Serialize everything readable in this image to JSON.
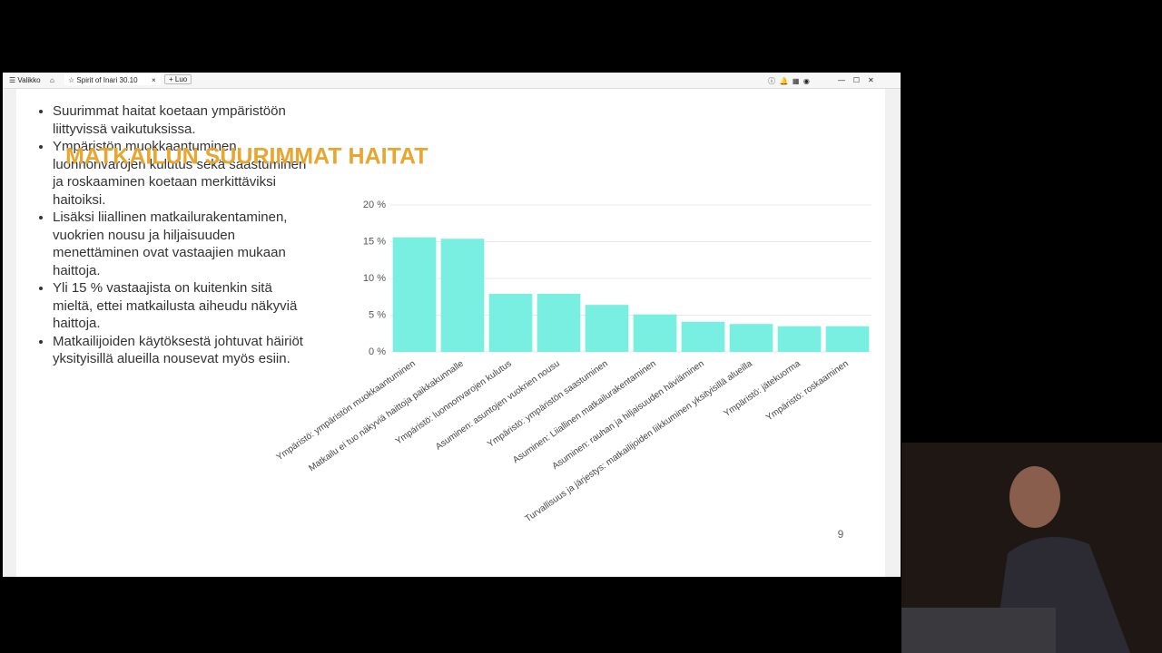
{
  "browser": {
    "menu": "Valikko",
    "tab": "Spirit of Inari 30.10",
    "new_tab": "Luo"
  },
  "slide": {
    "title": "MATKAILUN SUURIMMAT HAITAT",
    "bullets": [
      "Suurimmat haitat koetaan ympäristöön liittyvissä vaikutuksissa.",
      "Ympäristön muokkaantuminen, luonnonvarojen kulutus sekä saastuminen ja roskaaminen koetaan merkittäviksi haitoiksi.",
      "Lisäksi liiallinen matkailurakentaminen, vuokrien nousu ja hiljaisuuden menettäminen ovat vastaajien mukaan haittoja.",
      "Yli 15 % vastaajista on kuitenkin sitä mieltä, ettei matkailusta aiheudu näkyviä haittoja.",
      "Matkailijoiden käytöksestä johtuvat häiriöt yksityisillä alueilla nousevat myös esiin."
    ],
    "page_number": "9"
  },
  "chart_data": {
    "type": "bar",
    "categories": [
      "Ympäristö: ympäristön muokkaantuminen",
      "Matkailu ei tuo näkyviä haittoja paikkakunnalle",
      "Ympäristö: luonnonvarojen kulutus",
      "Asuminen: asuntojen vuokrien nousu",
      "Ympäristö: ympäristön saastuminen",
      "Asuminen: Liiallinen matkailurakentaminen",
      "Asuminen: rauhan ja hiljaisuuden häviäminen",
      "Turvallisuus ja järjestys: matkailijoiden liikkuminen yksityisillä alueilla",
      "Ympäristö: jätekuorma",
      "Ympäristö: roskaaminen"
    ],
    "values": [
      15.6,
      15.4,
      7.9,
      7.9,
      6.4,
      5.1,
      4.1,
      3.8,
      3.5,
      3.5
    ],
    "color": "#78efe0",
    "ylim": [
      0,
      20
    ],
    "yticks": [
      {
        "value": 0,
        "label": "0 %"
      },
      {
        "value": 5,
        "label": "5 %"
      },
      {
        "value": 10,
        "label": "10 %"
      },
      {
        "value": 15,
        "label": "15 %"
      },
      {
        "value": 20,
        "label": "20 %"
      }
    ],
    "grid": true
  }
}
